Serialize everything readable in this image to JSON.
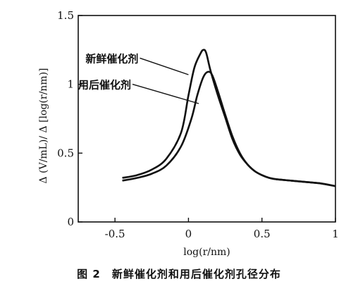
{
  "chart_data": {
    "type": "line",
    "title": "",
    "xlabel": "log(r/nm)",
    "ylabel": "Δ (V/mL)/ Δ [log(r/nm)]",
    "xlim": [
      -0.75,
      1.0
    ],
    "ylim": [
      0,
      1.5
    ],
    "xticks": [
      -0.5,
      0,
      0.5,
      1
    ],
    "xtick_labels": [
      "-0.5",
      "0",
      "0.5",
      "1"
    ],
    "yticks": [
      0,
      0.5,
      1,
      1.5
    ],
    "ytick_labels": [
      "0",
      "0.5",
      "1",
      "1.5"
    ],
    "grid": false,
    "series": [
      {
        "name": "新鲜催化剂",
        "x": [
          -0.45,
          -0.35,
          -0.25,
          -0.15,
          -0.05,
          0.0,
          0.04,
          0.08,
          0.1,
          0.12,
          0.15,
          0.2,
          0.25,
          0.3,
          0.35,
          0.4,
          0.45,
          0.5,
          0.55,
          0.6,
          0.7,
          0.8,
          0.9,
          1.0
        ],
        "y": [
          0.32,
          0.34,
          0.38,
          0.46,
          0.65,
          0.92,
          1.12,
          1.22,
          1.25,
          1.23,
          1.1,
          0.92,
          0.76,
          0.6,
          0.49,
          0.42,
          0.37,
          0.34,
          0.32,
          0.31,
          0.3,
          0.29,
          0.28,
          0.26
        ]
      },
      {
        "name": "用后催化剂",
        "x": [
          -0.45,
          -0.35,
          -0.25,
          -0.15,
          -0.05,
          0.02,
          0.06,
          0.1,
          0.13,
          0.16,
          0.2,
          0.25,
          0.3,
          0.35,
          0.4,
          0.45,
          0.5,
          0.55,
          0.6,
          0.7,
          0.8,
          0.9,
          1.0
        ],
        "y": [
          0.3,
          0.32,
          0.35,
          0.41,
          0.55,
          0.75,
          0.92,
          1.05,
          1.09,
          1.07,
          0.95,
          0.78,
          0.62,
          0.5,
          0.42,
          0.37,
          0.34,
          0.32,
          0.31,
          0.3,
          0.29,
          0.28,
          0.26
        ]
      }
    ],
    "annotations": [
      {
        "text": "新鲜催化剂",
        "x": -0.7,
        "y": 1.16,
        "points_to": [
          0.0,
          1.07
        ]
      },
      {
        "text": "用后催化剂",
        "x": -0.75,
        "y": 0.97,
        "points_to": [
          0.07,
          0.86
        ]
      }
    ]
  },
  "caption": {
    "figure_number": "图 2",
    "text": "新鲜催化剂和用后催化剂孔径分布"
  }
}
